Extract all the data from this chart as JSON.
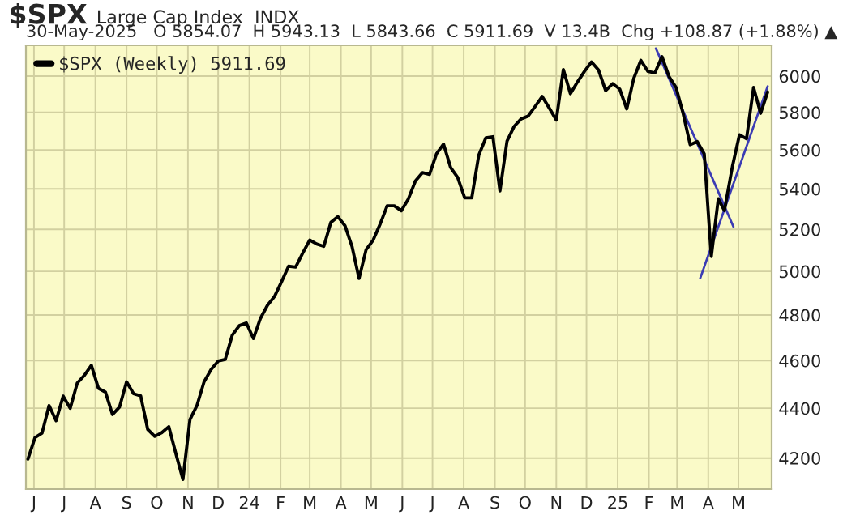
{
  "chart_data": {
    "type": "line",
    "title": "$SPX",
    "subtitle": "Large Cap Index  INDX",
    "annotations": [
      "30-May-2025   O 5854.07  H 5943.13  L 5843.66  C 5911.69  V 13.4B  Chg +108.87 (+1.88%) ▲"
    ],
    "x": [
      "2023-05-26",
      "2023-06-02",
      "2023-06-09",
      "2023-06-16",
      "2023-06-23",
      "2023-06-30",
      "2023-07-07",
      "2023-07-14",
      "2023-07-21",
      "2023-07-28",
      "2023-08-04",
      "2023-08-11",
      "2023-08-18",
      "2023-08-25",
      "2023-09-01",
      "2023-09-08",
      "2023-09-15",
      "2023-09-22",
      "2023-09-29",
      "2023-10-06",
      "2023-10-13",
      "2023-10-20",
      "2023-10-27",
      "2023-11-03",
      "2023-11-10",
      "2023-11-17",
      "2023-11-24",
      "2023-12-01",
      "2023-12-08",
      "2023-12-15",
      "2023-12-22",
      "2023-12-29",
      "2024-01-05",
      "2024-01-12",
      "2024-01-19",
      "2024-01-26",
      "2024-02-02",
      "2024-02-09",
      "2024-02-16",
      "2024-02-23",
      "2024-03-01",
      "2024-03-08",
      "2024-03-15",
      "2024-03-22",
      "2024-03-29",
      "2024-04-05",
      "2024-04-12",
      "2024-04-19",
      "2024-04-26",
      "2024-05-03",
      "2024-05-10",
      "2024-05-17",
      "2024-05-24",
      "2024-05-31",
      "2024-06-07",
      "2024-06-14",
      "2024-06-21",
      "2024-06-28",
      "2024-07-05",
      "2024-07-12",
      "2024-07-19",
      "2024-07-26",
      "2024-08-02",
      "2024-08-09",
      "2024-08-16",
      "2024-08-23",
      "2024-08-30",
      "2024-09-06",
      "2024-09-13",
      "2024-09-20",
      "2024-09-27",
      "2024-10-04",
      "2024-10-11",
      "2024-10-18",
      "2024-10-25",
      "2024-11-01",
      "2024-11-08",
      "2024-11-15",
      "2024-11-22",
      "2024-11-29",
      "2024-12-06",
      "2024-12-13",
      "2024-12-20",
      "2024-12-27",
      "2025-01-03",
      "2025-01-10",
      "2025-01-17",
      "2025-01-24",
      "2025-01-31",
      "2025-02-07",
      "2025-02-14",
      "2025-02-21",
      "2025-02-28",
      "2025-03-07",
      "2025-03-14",
      "2025-03-21",
      "2025-03-28",
      "2025-04-04",
      "2025-04-11",
      "2025-04-17",
      "2025-04-25",
      "2025-05-02",
      "2025-05-09",
      "2025-05-16",
      "2025-05-23",
      "2025-05-30"
    ],
    "series": [
      {
        "name": "$SPX (Weekly) 5911.69",
        "color": "#000000",
        "values": [
          4196,
          4281,
          4299,
          4411,
          4349,
          4450,
          4400,
          4505,
          4537,
          4580,
          4483,
          4467,
          4374,
          4405,
          4510,
          4460,
          4451,
          4314,
          4286,
          4301,
          4325,
          4217,
          4117,
          4354,
          4412,
          4510,
          4562,
          4598,
          4605,
          4711,
          4753,
          4765,
          4696,
          4785,
          4844,
          4884,
          4952,
          5024,
          5020,
          5086,
          5148,
          5129,
          5118,
          5234,
          5262,
          5218,
          5118,
          4967,
          5102,
          5148,
          5226,
          5316,
          5316,
          5291,
          5350,
          5440,
          5483,
          5474,
          5580,
          5631,
          5509,
          5458,
          5355,
          5355,
          5574,
          5664,
          5670,
          5390,
          5646,
          5724,
          5765,
          5780,
          5833,
          5887,
          5824,
          5759,
          6037,
          5902,
          5967,
          6027,
          6080,
          6034,
          5919,
          5958,
          5928,
          5819,
          5988,
          6089,
          6027,
          6018,
          6110,
          5998,
          5937,
          5795,
          5628,
          5645,
          5580,
          5070,
          5351,
          5292,
          5515,
          5680,
          5659,
          5937,
          5795,
          5912
        ]
      },
      {
        "type": "line",
        "color": "#3c3cb4",
        "x": [
          "2025-02-08",
          "2025-04-26"
        ],
        "values": [
          6157,
          5213
        ]
      },
      {
        "type": "line",
        "color": "#3c3cb4",
        "x": [
          "2025-03-24",
          "2025-05-30"
        ],
        "values": [
          4968,
          5943
        ]
      }
    ],
    "xlim": [
      "2023-05-24",
      "2025-06-03"
    ],
    "xticks": [
      {
        "value": "2023-06-01",
        "label": "J"
      },
      {
        "value": "2023-07-01",
        "label": "J"
      },
      {
        "value": "2023-08-01",
        "label": "A"
      },
      {
        "value": "2023-09-01",
        "label": "S"
      },
      {
        "value": "2023-10-01",
        "label": "O"
      },
      {
        "value": "2023-11-01",
        "label": "N"
      },
      {
        "value": "2023-12-01",
        "label": "D"
      },
      {
        "value": "2024-01-01",
        "label": "24"
      },
      {
        "value": "2024-02-01",
        "label": "F"
      },
      {
        "value": "2024-03-01",
        "label": "M"
      },
      {
        "value": "2024-04-01",
        "label": "A"
      },
      {
        "value": "2024-05-01",
        "label": "M"
      },
      {
        "value": "2024-06-01",
        "label": "J"
      },
      {
        "value": "2024-07-01",
        "label": "J"
      },
      {
        "value": "2024-08-01",
        "label": "A"
      },
      {
        "value": "2024-09-01",
        "label": "S"
      },
      {
        "value": "2024-10-01",
        "label": "O"
      },
      {
        "value": "2024-11-01",
        "label": "N"
      },
      {
        "value": "2024-12-01",
        "label": "D"
      },
      {
        "value": "2025-01-01",
        "label": "25"
      },
      {
        "value": "2025-02-01",
        "label": "F"
      },
      {
        "value": "2025-03-01",
        "label": "M"
      },
      {
        "value": "2025-04-01",
        "label": "A"
      },
      {
        "value": "2025-05-01",
        "label": "M"
      }
    ],
    "log": true,
    "ylim": [
      4080,
      6175
    ],
    "yticks": [
      4200,
      4400,
      4600,
      4800,
      5000,
      5200,
      5400,
      5600,
      5800,
      6000
    ],
    "grid": true,
    "legend": "top left"
  }
}
